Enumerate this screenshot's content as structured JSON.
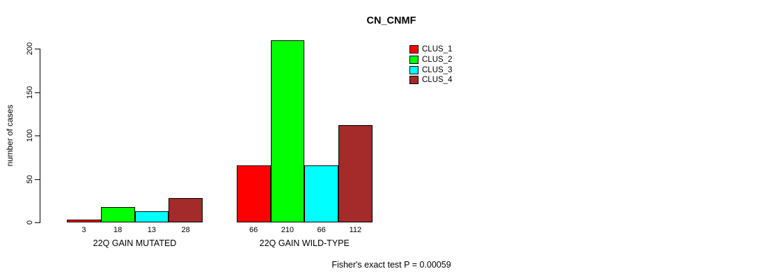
{
  "chart": {
    "title": "CN_CNMF",
    "ylabel": "number of cases",
    "footnote": "Fisher's exact test P = 0.00059"
  },
  "chart_data": {
    "type": "bar",
    "title": "CN_CNMF",
    "xlabel": "",
    "ylabel": "number of cases",
    "categories": [
      "22Q GAIN MUTATED",
      "22Q GAIN WILD-TYPE"
    ],
    "series": [
      {
        "name": "CLUS_1",
        "color": "#FF0000",
        "values": [
          3,
          66
        ]
      },
      {
        "name": "CLUS_2",
        "color": "#00FF00",
        "values": [
          18,
          210
        ]
      },
      {
        "name": "CLUS_3",
        "color": "#00FFFF",
        "values": [
          13,
          66
        ]
      },
      {
        "name": "CLUS_4",
        "color": "#A52A2A",
        "values": [
          28,
          112
        ]
      }
    ],
    "yticks": [
      0,
      50,
      100,
      150,
      200
    ],
    "ylim": [
      0,
      210
    ],
    "grid": false,
    "show_value_labels": true,
    "legend_position": "top-right-inside",
    "legend_entries": [
      "CLUS_1",
      "CLUS_2",
      "CLUS_3",
      "CLUS_4"
    ],
    "annotation": "Fisher's exact test P = 0.00059"
  }
}
